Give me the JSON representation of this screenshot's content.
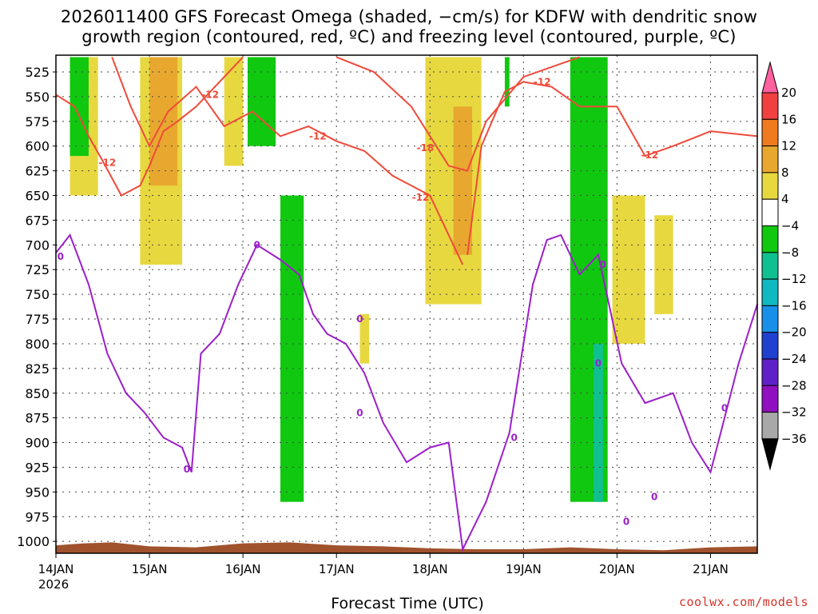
{
  "chart_data": {
    "type": "heatmap",
    "title": "2026011400 GFS Forecast Omega (shaded, −cm/s) for KDFW with dendritic snow",
    "subtitle": "growth region (contoured, red, ºC) and freezing level (contoured, purple, ºC)",
    "xlabel": "Forecast Time (UTC)",
    "ylabel": "",
    "x_ticks": [
      "14JAN",
      "15JAN",
      "16JAN",
      "17JAN",
      "18JAN",
      "19JAN",
      "20JAN",
      "21JAN"
    ],
    "x_tick_year": "2026",
    "xlim_days": [
      0,
      7.5
    ],
    "y_ticks": [
      525,
      550,
      575,
      600,
      625,
      650,
      675,
      700,
      725,
      750,
      775,
      800,
      825,
      850,
      875,
      900,
      925,
      950,
      975,
      1000
    ],
    "ylim": [
      508,
      1012
    ],
    "grid": true,
    "colorbar": {
      "labels": [
        "20",
        "16",
        "12",
        "8",
        "4",
        "−4",
        "−8",
        "−12",
        "−16",
        "−20",
        "−24",
        "−28",
        "−32",
        "−36"
      ],
      "colors": [
        "#ff60a0",
        "#f04040",
        "#f07a20",
        "#e8a830",
        "#e8d840",
        "#ffffff",
        "#10c810",
        "#10c090",
        "#10b8c0",
        "#1890e8",
        "#2040d0",
        "#6020c8",
        "#9010c0",
        "#a8a8a8",
        "#000000"
      ]
    },
    "omega_regions": [
      {
        "value": 6,
        "day_start": 0.15,
        "day_end": 0.45,
        "p_top": 510,
        "p_bottom": 650
      },
      {
        "value": 6,
        "day_start": 0.9,
        "day_end": 1.35,
        "p_top": 510,
        "p_bottom": 720
      },
      {
        "value": 10,
        "day_start": 1.0,
        "day_end": 1.3,
        "p_top": 510,
        "p_bottom": 640
      },
      {
        "value": 6,
        "day_start": 1.8,
        "day_end": 2.0,
        "p_top": 510,
        "p_bottom": 620
      },
      {
        "value": -6,
        "day_start": 0.15,
        "day_end": 0.35,
        "p_top": 510,
        "p_bottom": 610
      },
      {
        "value": -6,
        "day_start": 2.05,
        "day_end": 2.35,
        "p_top": 510,
        "p_bottom": 600
      },
      {
        "value": -6,
        "day_start": 2.4,
        "day_end": 2.65,
        "p_top": 650,
        "p_bottom": 960
      },
      {
        "value": 6,
        "day_start": 3.25,
        "day_end": 3.35,
        "p_top": 770,
        "p_bottom": 820
      },
      {
        "value": 6,
        "day_start": 3.95,
        "day_end": 4.55,
        "p_top": 510,
        "p_bottom": 760
      },
      {
        "value": 10,
        "day_start": 4.25,
        "day_end": 4.45,
        "p_top": 560,
        "p_bottom": 710
      },
      {
        "value": -6,
        "day_start": 4.8,
        "day_end": 4.85,
        "p_top": 510,
        "p_bottom": 560
      },
      {
        "value": -6,
        "day_start": 5.5,
        "day_end": 5.9,
        "p_top": 510,
        "p_bottom": 960
      },
      {
        "value": -10,
        "day_start": 5.75,
        "day_end": 5.85,
        "p_top": 800,
        "p_bottom": 960
      },
      {
        "value": 6,
        "day_start": 5.95,
        "day_end": 6.3,
        "p_top": 650,
        "p_bottom": 800
      },
      {
        "value": 6,
        "day_start": 6.4,
        "day_end": 6.6,
        "p_top": 670,
        "p_bottom": 770
      }
    ],
    "contours_dgz": {
      "color": "#f04a3a",
      "labels": [
        "-12",
        "-12",
        "-12",
        "-18",
        "-12",
        "-12",
        "-12"
      ],
      "lines": [
        {
          "x": [
            0,
            0.2,
            0.35,
            0.5,
            0.7,
            0.9,
            1.0,
            1.15,
            1.3,
            1.5,
            1.8,
            2.0
          ],
          "y": [
            548,
            560,
            590,
            615,
            650,
            640,
            620,
            585,
            575,
            560,
            530,
            510
          ]
        },
        {
          "x": [
            0.6,
            0.8,
            1.0,
            1.2,
            1.5,
            1.8,
            2.1,
            2.4,
            2.7,
            3.0,
            3.3,
            3.6,
            4.0,
            4.2,
            4.35
          ],
          "y": [
            510,
            560,
            600,
            565,
            540,
            580,
            565,
            590,
            580,
            595,
            605,
            630,
            650,
            690,
            720
          ]
        },
        {
          "x": [
            4.4,
            4.55,
            4.8,
            5.0,
            5.3,
            5.6,
            6.0,
            6.3,
            6.6,
            7.0,
            7.5
          ],
          "y": [
            710,
            600,
            545,
            535,
            540,
            560,
            560,
            610,
            600,
            585,
            590
          ]
        },
        {
          "x": [
            3.0,
            3.4,
            3.8,
            4.2,
            4.4,
            4.6,
            5.0,
            5.3,
            5.6
          ],
          "y": [
            510,
            525,
            560,
            620,
            625,
            575,
            530,
            520,
            510
          ]
        }
      ]
    },
    "contours_freezing": {
      "color": "#9b1fc9",
      "labels": [
        "0",
        "0",
        "0",
        "0",
        "0",
        "0",
        "0",
        "0",
        "0",
        "0",
        "0"
      ],
      "lines": [
        {
          "x": [
            0,
            0.15,
            0.35,
            0.55,
            0.75,
            0.95,
            1.15,
            1.35,
            1.45,
            1.55,
            1.75,
            1.95,
            2.15,
            2.4,
            2.6,
            2.75,
            2.9,
            3.1,
            3.3,
            3.5,
            3.75,
            4.0,
            4.2,
            4.35,
            4.6,
            4.85,
            5.1,
            5.25,
            5.4,
            5.6,
            5.8,
            6.05,
            6.3,
            6.6,
            6.8,
            7.0,
            7.3,
            7.5
          ],
          "y": [
            708,
            690,
            740,
            810,
            850,
            870,
            895,
            905,
            930,
            810,
            790,
            740,
            700,
            715,
            730,
            770,
            790,
            800,
            830,
            880,
            920,
            905,
            900,
            1008,
            960,
            890,
            740,
            695,
            690,
            730,
            710,
            820,
            860,
            850,
            900,
            930,
            820,
            760
          ]
        }
      ]
    }
  },
  "branding": {
    "credit": "coolwx.com/models"
  }
}
